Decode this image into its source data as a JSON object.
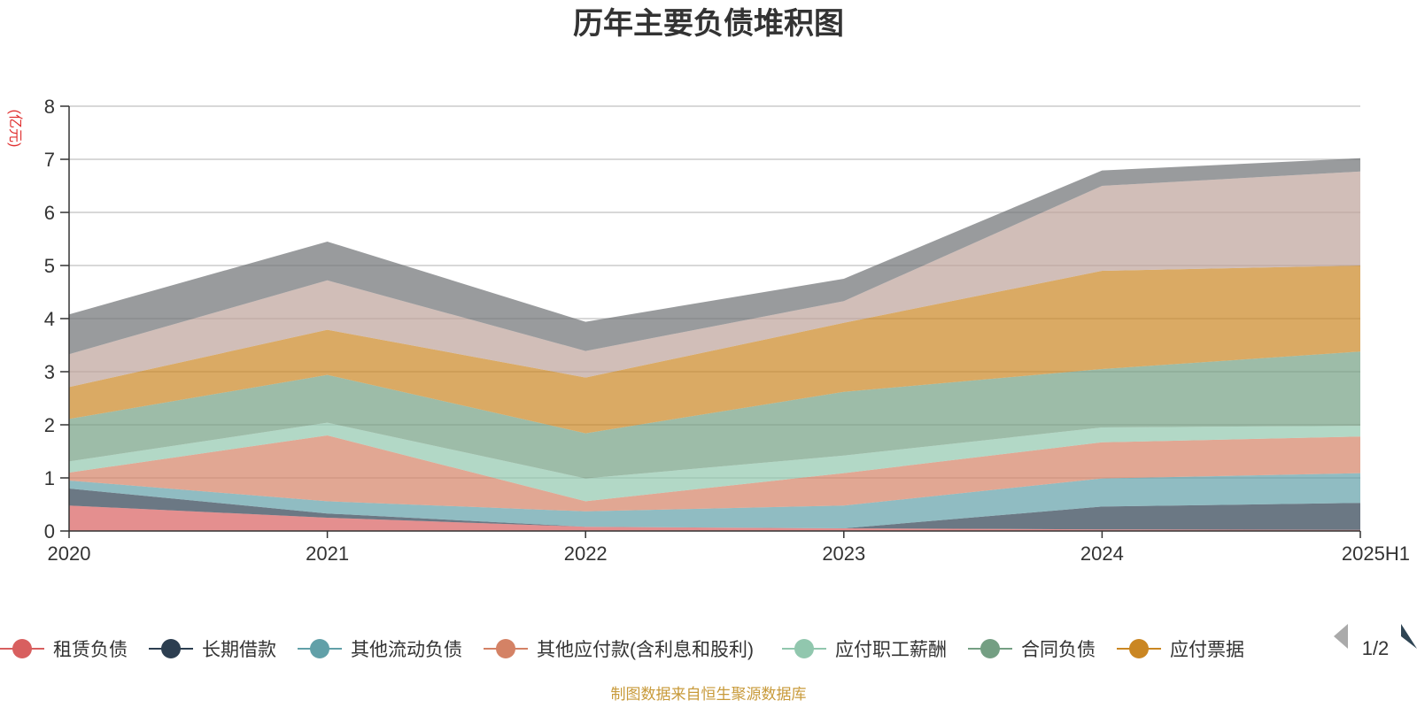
{
  "chart_data": {
    "type": "area",
    "stacked": true,
    "title": "历年主要负债堆积图",
    "unit_label": "(亿元)",
    "x": [
      "2020",
      "2021",
      "2022",
      "2023",
      "2024",
      "2025H1"
    ],
    "ylim": [
      0,
      8
    ],
    "yticks": [
      "0",
      "1",
      "2",
      "3",
      "4",
      "5",
      "6",
      "7",
      "8"
    ],
    "grid": true,
    "legend_position": "bottom",
    "series": [
      {
        "name": "租赁负债",
        "color": "#d85f5f",
        "values": [
          0.48,
          0.25,
          0.08,
          0.05,
          0.03,
          0.02
        ]
      },
      {
        "name": "长期借款",
        "color": "#2c3e50",
        "values": [
          0.32,
          0.08,
          0.0,
          0.0,
          0.43,
          0.51
        ]
      },
      {
        "name": "其他流动负债",
        "color": "#61a0a8",
        "values": [
          0.15,
          0.23,
          0.29,
          0.43,
          0.53,
          0.56
        ]
      },
      {
        "name": "其他应付款(含利息和股利)",
        "color": "#d48265",
        "values": [
          0.15,
          1.24,
          0.19,
          0.61,
          0.68,
          0.69
        ]
      },
      {
        "name": "应付职工薪酬",
        "color": "#91c7ae",
        "values": [
          0.21,
          0.24,
          0.43,
          0.33,
          0.28,
          0.2
        ]
      },
      {
        "name": "合同负债",
        "color": "#749f83",
        "values": [
          0.8,
          0.9,
          0.85,
          1.2,
          1.1,
          1.4
        ]
      },
      {
        "name": "应付票据",
        "color": "#ca8622",
        "values": [
          0.6,
          0.85,
          1.05,
          1.3,
          1.85,
          1.62
        ]
      },
      {
        "name": "",
        "color": "#bda29a",
        "values": [
          0.62,
          0.93,
          0.5,
          0.41,
          1.6,
          1.77
        ]
      },
      {
        "name": "",
        "color": "#6e7074",
        "values": [
          0.75,
          0.73,
          0.55,
          0.42,
          0.29,
          0.25
        ]
      }
    ],
    "legend_pager": "1/2"
  },
  "source_note": "制图数据来自恒生聚源数据库"
}
